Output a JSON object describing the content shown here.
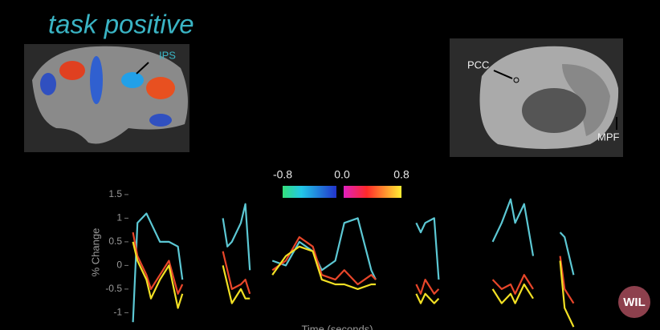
{
  "chart_data": {
    "type": "line",
    "y_label": "% Change",
    "x_label": "Time (seconds)",
    "x": [
      1,
      2,
      4,
      5,
      7,
      9,
      11,
      12,
      13,
      21,
      22,
      23,
      25,
      26,
      27,
      28,
      32,
      35,
      38,
      41,
      43,
      46,
      48,
      51,
      54,
      55,
      56,
      64,
      65,
      66,
      68,
      69,
      70,
      81,
      83,
      85,
      86,
      88,
      90,
      91,
      96,
      97,
      99
    ],
    "xlim": [
      0,
      100
    ],
    "ylim": [
      -1.4,
      1.6
    ],
    "yticks": [
      1.5,
      1,
      0.5,
      0,
      -0.5,
      -1
    ],
    "series": [
      {
        "color": "#5cc8d4",
        "values": [
          -1.2,
          0.9,
          1.1,
          0.9,
          0.5,
          0.5,
          0.4,
          -0.3,
          null,
          1.0,
          0.4,
          0.5,
          0.9,
          1.3,
          -0.1,
          null,
          0.1,
          0.0,
          0.5,
          0.3,
          -0.1,
          0.1,
          0.9,
          1.0,
          -0.1,
          -0.3,
          null,
          0.9,
          0.7,
          0.9,
          1.0,
          -0.3,
          null,
          0.5,
          0.9,
          1.4,
          0.9,
          1.3,
          0.2,
          null,
          0.7,
          0.6,
          -0.2
        ]
      },
      {
        "color": "#e8462a",
        "values": [
          0.7,
          0.2,
          -0.2,
          -0.5,
          -0.2,
          0.1,
          -0.6,
          -0.4,
          null,
          0.3,
          -0.1,
          -0.5,
          -0.4,
          -0.3,
          -0.6,
          null,
          -0.1,
          0.1,
          0.6,
          0.4,
          -0.2,
          -0.3,
          -0.1,
          -0.4,
          -0.2,
          -0.3,
          null,
          -0.4,
          -0.6,
          -0.3,
          -0.6,
          -0.5,
          null,
          -0.3,
          -0.5,
          -0.4,
          -0.6,
          -0.2,
          -0.5,
          null,
          0.2,
          -0.5,
          -0.8
        ]
      },
      {
        "color": "#f2e024",
        "values": [
          0.5,
          0.1,
          -0.3,
          -0.7,
          -0.3,
          0.0,
          -0.9,
          -0.6,
          null,
          0.0,
          -0.4,
          -0.8,
          -0.5,
          -0.7,
          -0.7,
          null,
          -0.2,
          0.2,
          0.4,
          0.3,
          -0.3,
          -0.4,
          -0.4,
          -0.5,
          -0.4,
          -0.4,
          null,
          -0.6,
          -0.8,
          -0.6,
          -0.8,
          -0.7,
          null,
          -0.5,
          -0.8,
          -0.6,
          -0.8,
          -0.4,
          -0.7,
          null,
          0.1,
          -0.9,
          -1.3
        ]
      }
    ]
  },
  "left_panel": {
    "title": "task positive",
    "label": "IPS"
  },
  "right_panel": {
    "labels": [
      "PCC",
      "MPF"
    ]
  },
  "colorbar": {
    "ticks": [
      -0.8,
      {
        "value": 0,
        "label": "0.0"
      },
      0.8
    ]
  },
  "logo": "WIL"
}
